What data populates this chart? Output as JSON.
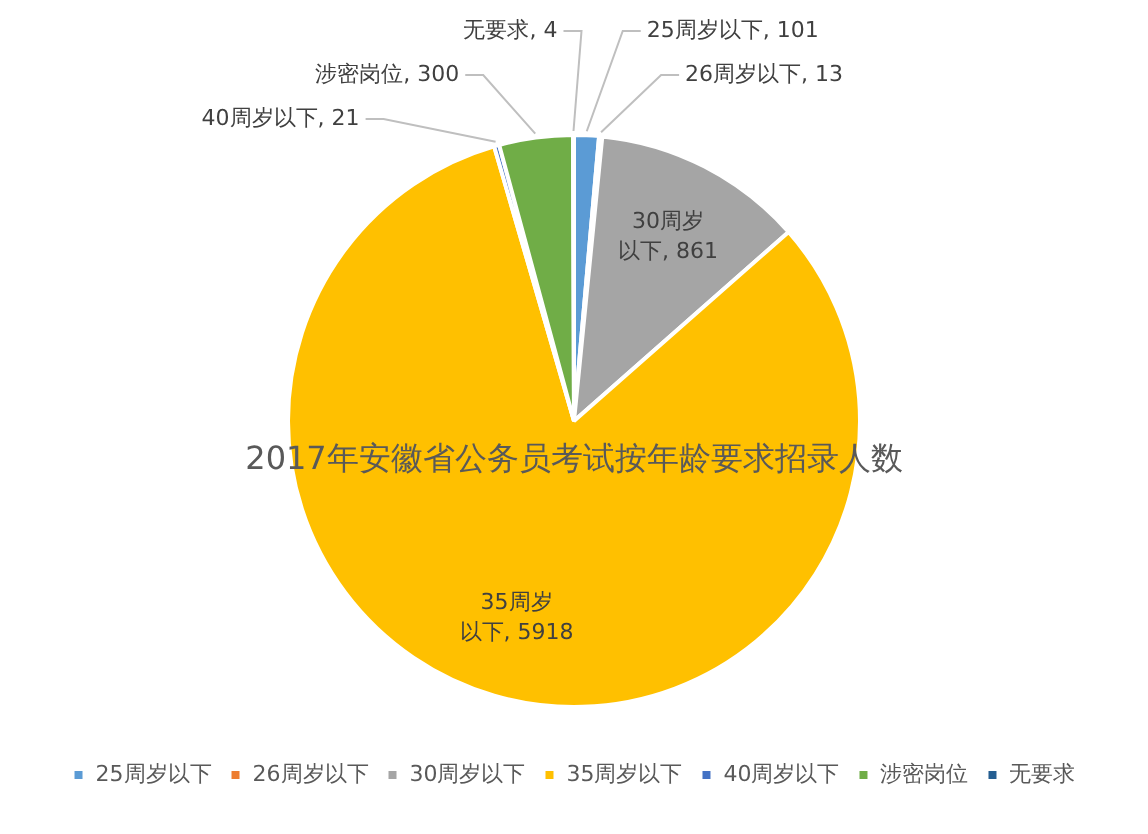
{
  "chart_data": {
    "type": "pie",
    "title": "2017年安徽省公务员考试按年龄要求招录人数",
    "categories": [
      "25周岁以下",
      "26周岁以下",
      "30周岁以下",
      "35周岁以下",
      "40周岁以下",
      "涉密岗位",
      "无要求"
    ],
    "values": [
      101,
      13,
      861,
      5918,
      21,
      300,
      4
    ],
    "value_labels": [
      "25周岁以下, 101",
      "26周岁以下, 13",
      "30周岁以下, 861",
      "35周岁以下, 5918",
      "40周岁以下, 21",
      "涉密岗位, 300",
      "无要求, 4"
    ],
    "colors": [
      "#5b9bd5",
      "#ed7d31",
      "#a5a5a5",
      "#ffc000",
      "#4472c4",
      "#70ad47",
      "#255e91"
    ],
    "legend": "bottom"
  }
}
